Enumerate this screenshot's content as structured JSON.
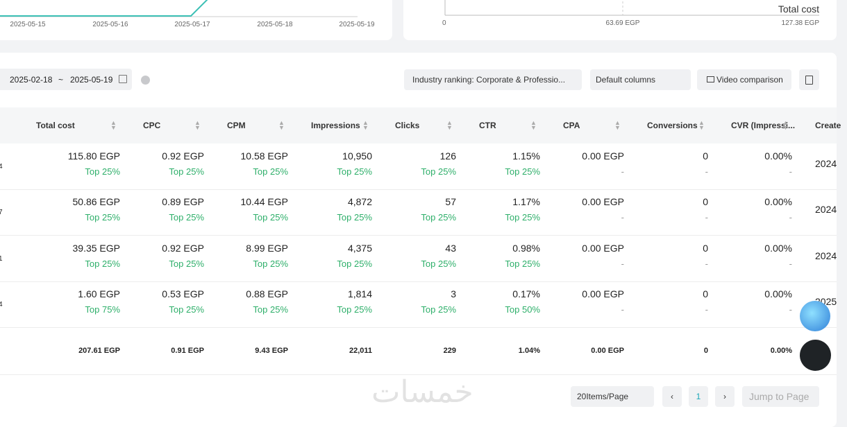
{
  "trend_chart": {
    "x_labels": [
      "2025-05-15",
      "2025-05-16",
      "2025-05-17",
      "2025-05-18",
      "2025-05-19"
    ]
  },
  "cost_chart": {
    "axis_label": "Total cost",
    "x_labels": [
      "0",
      "63.69 EGP",
      "127.38 EGP"
    ]
  },
  "toolbar": {
    "date_start": "2025-02-18",
    "date_separator": "~",
    "date_end": "2025-05-19",
    "industry_ranking": "Industry ranking: Corporate & Professio...",
    "columns": "Default columns",
    "video_comparison": "Video comparison"
  },
  "table": {
    "columns": [
      "Total cost",
      "CPC",
      "CPM",
      "Impressions",
      "Clicks",
      "CTR",
      "CPA",
      "Conversions",
      "CVR (Impressi...",
      "Create"
    ],
    "rows": [
      {
        "id": "4",
        "created": "2024",
        "cells": [
          {
            "value": "115.80 EGP",
            "rank": "Top 25%"
          },
          {
            "value": "0.92 EGP",
            "rank": "Top 25%"
          },
          {
            "value": "10.58 EGP",
            "rank": "Top 25%"
          },
          {
            "value": "10,950",
            "rank": "Top 25%"
          },
          {
            "value": "126",
            "rank": "Top 25%"
          },
          {
            "value": "1.15%",
            "rank": "Top 25%"
          },
          {
            "value": "0.00 EGP",
            "rank": "-"
          },
          {
            "value": "0",
            "rank": "-"
          },
          {
            "value": "0.00%",
            "rank": "-"
          }
        ]
      },
      {
        "id": "7",
        "created": "2024",
        "cells": [
          {
            "value": "50.86 EGP",
            "rank": "Top 25%"
          },
          {
            "value": "0.89 EGP",
            "rank": "Top 25%"
          },
          {
            "value": "10.44 EGP",
            "rank": "Top 25%"
          },
          {
            "value": "4,872",
            "rank": "Top 25%"
          },
          {
            "value": "57",
            "rank": "Top 25%"
          },
          {
            "value": "1.17%",
            "rank": "Top 25%"
          },
          {
            "value": "0.00 EGP",
            "rank": "-"
          },
          {
            "value": "0",
            "rank": "-"
          },
          {
            "value": "0.00%",
            "rank": "-"
          }
        ]
      },
      {
        "id": "1",
        "created": "2024",
        "cells": [
          {
            "value": "39.35 EGP",
            "rank": "Top 25%"
          },
          {
            "value": "0.92 EGP",
            "rank": "Top 25%"
          },
          {
            "value": "8.99 EGP",
            "rank": "Top 25%"
          },
          {
            "value": "4,375",
            "rank": "Top 25%"
          },
          {
            "value": "43",
            "rank": "Top 25%"
          },
          {
            "value": "0.98%",
            "rank": "Top 25%"
          },
          {
            "value": "0.00 EGP",
            "rank": "-"
          },
          {
            "value": "0",
            "rank": "-"
          },
          {
            "value": "0.00%",
            "rank": "-"
          }
        ]
      },
      {
        "id": "4",
        "created": "2025",
        "cells": [
          {
            "value": "1.60 EGP",
            "rank": "Top 75%"
          },
          {
            "value": "0.53 EGP",
            "rank": "Top 25%"
          },
          {
            "value": "0.88 EGP",
            "rank": "Top 25%"
          },
          {
            "value": "1,814",
            "rank": "Top 25%"
          },
          {
            "value": "3",
            "rank": "Top 25%"
          },
          {
            "value": "0.17%",
            "rank": "Top 50%"
          },
          {
            "value": "0.00 EGP",
            "rank": "-"
          },
          {
            "value": "0",
            "rank": "-"
          },
          {
            "value": "0.00%",
            "rank": "-"
          }
        ]
      }
    ],
    "summary": [
      "207.61 EGP",
      "0.91 EGP",
      "9.43 EGP",
      "22,011",
      "229",
      "1.04%",
      "0.00 EGP",
      "0",
      "0.00%"
    ]
  },
  "pagination": {
    "page_size": "20Items/Page",
    "current_page": "1",
    "jump": "Jump to Page"
  },
  "watermark": "خمسات"
}
